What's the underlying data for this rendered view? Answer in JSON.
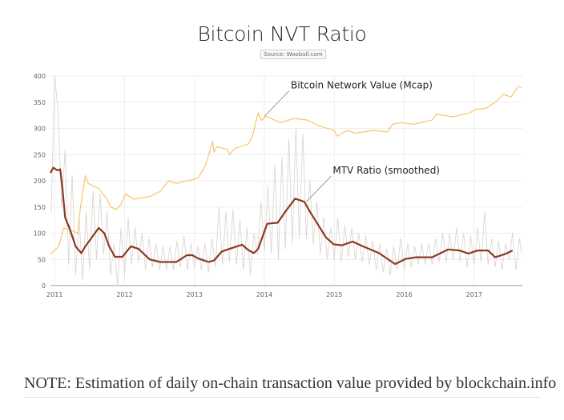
{
  "title": "Bitcoin NVT Ratio",
  "source": "Source: Woobull.com",
  "note": "NOTE: Estimation of daily on-chain transaction value provided by blockchain.info",
  "chart_data": {
    "type": "line",
    "title": "Bitcoin NVT Ratio",
    "xlim": [
      2010.94,
      2017.69
    ],
    "ylim": [
      0,
      400
    ],
    "x_ticks": [
      "2011",
      "2012",
      "2013",
      "2014",
      "2015",
      "2016",
      "2017"
    ],
    "y_ticks": [
      "0",
      "50",
      "100",
      "150",
      "200",
      "250",
      "300",
      "350",
      "400"
    ],
    "grid": true,
    "colors": {
      "mcap": "#f8c062",
      "mtv": "#8b3a22",
      "daily": "#d9d2cf"
    },
    "annotations": [
      {
        "text": "Bitcoin Network Value (Mcap)",
        "target": [
          2014.0,
          323
        ]
      },
      {
        "text": "MTV Ratio (smoothed)",
        "target": [
          2014.6,
          160
        ]
      }
    ],
    "series": [
      {
        "name": "Bitcoin Network Value (Mcap)",
        "key": "mcap",
        "points": [
          [
            2010.94,
            60
          ],
          [
            2011.06,
            75
          ],
          [
            2011.13,
            110
          ],
          [
            2011.25,
            105
          ],
          [
            2011.33,
            100
          ],
          [
            2011.37,
            150
          ],
          [
            2011.4,
            175
          ],
          [
            2011.44,
            210
          ],
          [
            2011.48,
            195
          ],
          [
            2011.63,
            185
          ],
          [
            2011.75,
            165
          ],
          [
            2011.8,
            150
          ],
          [
            2011.88,
            145
          ],
          [
            2011.95,
            155
          ],
          [
            2012.01,
            175
          ],
          [
            2012.13,
            165
          ],
          [
            2012.36,
            170
          ],
          [
            2012.51,
            180
          ],
          [
            2012.63,
            200
          ],
          [
            2012.74,
            195
          ],
          [
            2012.89,
            200
          ],
          [
            2013.05,
            205
          ],
          [
            2013.16,
            230
          ],
          [
            2013.26,
            275
          ],
          [
            2013.28,
            255
          ],
          [
            2013.32,
            265
          ],
          [
            2013.47,
            260
          ],
          [
            2013.5,
            250
          ],
          [
            2013.58,
            262
          ],
          [
            2013.77,
            270
          ],
          [
            2013.83,
            285
          ],
          [
            2013.91,
            330
          ],
          [
            2013.96,
            315
          ],
          [
            2014.02,
            323
          ],
          [
            2014.23,
            311
          ],
          [
            2014.42,
            319
          ],
          [
            2014.61,
            316
          ],
          [
            2014.8,
            304
          ],
          [
            2015.0,
            296
          ],
          [
            2015.04,
            285
          ],
          [
            2015.18,
            296
          ],
          [
            2015.3,
            291
          ],
          [
            2015.56,
            296
          ],
          [
            2015.76,
            293
          ],
          [
            2015.83,
            308
          ],
          [
            2015.95,
            311
          ],
          [
            2016.14,
            308
          ],
          [
            2016.4,
            316
          ],
          [
            2016.46,
            327
          ],
          [
            2016.7,
            322
          ],
          [
            2016.94,
            330
          ],
          [
            2017.02,
            336
          ],
          [
            2017.18,
            339
          ],
          [
            2017.32,
            352
          ],
          [
            2017.42,
            365
          ],
          [
            2017.53,
            360
          ],
          [
            2017.63,
            380
          ],
          [
            2017.68,
            378
          ]
        ]
      },
      {
        "name": "MTV Ratio (smoothed)",
        "key": "mtv",
        "points": [
          [
            2010.94,
            215
          ],
          [
            2010.98,
            225
          ],
          [
            2011.04,
            220
          ],
          [
            2011.08,
            222
          ],
          [
            2011.11,
            188
          ],
          [
            2011.15,
            130
          ],
          [
            2011.21,
            110
          ],
          [
            2011.3,
            75
          ],
          [
            2011.38,
            62
          ],
          [
            2011.44,
            75
          ],
          [
            2011.52,
            90
          ],
          [
            2011.63,
            110
          ],
          [
            2011.71,
            100
          ],
          [
            2011.78,
            75
          ],
          [
            2011.86,
            55
          ],
          [
            2011.97,
            55
          ],
          [
            2012.09,
            75
          ],
          [
            2012.2,
            70
          ],
          [
            2012.36,
            50
          ],
          [
            2012.51,
            45
          ],
          [
            2012.74,
            45
          ],
          [
            2012.89,
            58
          ],
          [
            2012.97,
            58
          ],
          [
            2013.05,
            52
          ],
          [
            2013.2,
            45
          ],
          [
            2013.28,
            48
          ],
          [
            2013.39,
            65
          ],
          [
            2013.5,
            70
          ],
          [
            2013.68,
            78
          ],
          [
            2013.77,
            68
          ],
          [
            2013.85,
            62
          ],
          [
            2013.91,
            70
          ],
          [
            2014.04,
            118
          ],
          [
            2014.19,
            120
          ],
          [
            2014.31,
            143
          ],
          [
            2014.44,
            166
          ],
          [
            2014.57,
            160
          ],
          [
            2014.67,
            137
          ],
          [
            2014.76,
            118
          ],
          [
            2014.88,
            92
          ],
          [
            2014.99,
            79
          ],
          [
            2015.11,
            77
          ],
          [
            2015.26,
            84
          ],
          [
            2015.41,
            75
          ],
          [
            2015.64,
            62
          ],
          [
            2015.87,
            41
          ],
          [
            2016.02,
            51
          ],
          [
            2016.17,
            54
          ],
          [
            2016.4,
            54
          ],
          [
            2016.63,
            69
          ],
          [
            2016.79,
            67
          ],
          [
            2016.92,
            61
          ],
          [
            2017.05,
            67
          ],
          [
            2017.2,
            67
          ],
          [
            2017.3,
            54
          ],
          [
            2017.44,
            60
          ],
          [
            2017.55,
            67
          ]
        ]
      },
      {
        "key": "daily",
        "points": [
          [
            2010.95,
            140
          ],
          [
            2011.0,
            400
          ],
          [
            2011.05,
            330
          ],
          [
            2011.1,
            150
          ],
          [
            2011.15,
            260
          ],
          [
            2011.2,
            40
          ],
          [
            2011.25,
            210
          ],
          [
            2011.3,
            20
          ],
          [
            2011.35,
            130
          ],
          [
            2011.4,
            10
          ],
          [
            2011.45,
            140
          ],
          [
            2011.5,
            30
          ],
          [
            2011.55,
            180
          ],
          [
            2011.6,
            50
          ],
          [
            2011.65,
            175
          ],
          [
            2011.7,
            60
          ],
          [
            2011.75,
            140
          ],
          [
            2011.8,
            20
          ],
          [
            2011.85,
            80
          ],
          [
            2011.9,
            0
          ],
          [
            2011.95,
            110
          ],
          [
            2012.0,
            20
          ],
          [
            2012.05,
            130
          ],
          [
            2012.1,
            40
          ],
          [
            2012.15,
            110
          ],
          [
            2012.2,
            45
          ],
          [
            2012.25,
            100
          ],
          [
            2012.3,
            30
          ],
          [
            2012.35,
            90
          ],
          [
            2012.4,
            35
          ],
          [
            2012.45,
            80
          ],
          [
            2012.5,
            30
          ],
          [
            2012.55,
            75
          ],
          [
            2012.6,
            30
          ],
          [
            2012.65,
            75
          ],
          [
            2012.7,
            30
          ],
          [
            2012.75,
            85
          ],
          [
            2012.8,
            35
          ],
          [
            2012.85,
            95
          ],
          [
            2012.9,
            30
          ],
          [
            2012.95,
            80
          ],
          [
            2013.0,
            35
          ],
          [
            2013.05,
            75
          ],
          [
            2013.1,
            30
          ],
          [
            2013.15,
            80
          ],
          [
            2013.2,
            25
          ],
          [
            2013.25,
            90
          ],
          [
            2013.3,
            35
          ],
          [
            2013.35,
            150
          ],
          [
            2013.4,
            40
          ],
          [
            2013.45,
            140
          ],
          [
            2013.5,
            45
          ],
          [
            2013.55,
            145
          ],
          [
            2013.6,
            40
          ],
          [
            2013.65,
            125
          ],
          [
            2013.7,
            30
          ],
          [
            2013.75,
            110
          ],
          [
            2013.8,
            20
          ],
          [
            2013.85,
            100
          ],
          [
            2013.9,
            60
          ],
          [
            2013.95,
            160
          ],
          [
            2014.0,
            65
          ],
          [
            2014.05,
            190
          ],
          [
            2014.1,
            60
          ],
          [
            2014.15,
            230
          ],
          [
            2014.2,
            50
          ],
          [
            2014.25,
            245
          ],
          [
            2014.3,
            70
          ],
          [
            2014.35,
            280
          ],
          [
            2014.4,
            80
          ],
          [
            2014.45,
            300
          ],
          [
            2014.5,
            90
          ],
          [
            2014.55,
            290
          ],
          [
            2014.6,
            90
          ],
          [
            2014.65,
            200
          ],
          [
            2014.7,
            80
          ],
          [
            2014.75,
            160
          ],
          [
            2014.8,
            60
          ],
          [
            2014.85,
            130
          ],
          [
            2014.9,
            50
          ],
          [
            2014.95,
            110
          ],
          [
            2015.0,
            50
          ],
          [
            2015.05,
            130
          ],
          [
            2015.1,
            45
          ],
          [
            2015.15,
            115
          ],
          [
            2015.2,
            55
          ],
          [
            2015.25,
            110
          ],
          [
            2015.3,
            50
          ],
          [
            2015.35,
            100
          ],
          [
            2015.4,
            45
          ],
          [
            2015.45,
            95
          ],
          [
            2015.5,
            40
          ],
          [
            2015.55,
            85
          ],
          [
            2015.6,
            30
          ],
          [
            2015.65,
            80
          ],
          [
            2015.7,
            25
          ],
          [
            2015.75,
            70
          ],
          [
            2015.8,
            20
          ],
          [
            2015.85,
            75
          ],
          [
            2015.9,
            30
          ],
          [
            2015.95,
            90
          ],
          [
            2016.0,
            30
          ],
          [
            2016.05,
            80
          ],
          [
            2016.1,
            35
          ],
          [
            2016.15,
            75
          ],
          [
            2016.2,
            40
          ],
          [
            2016.25,
            80
          ],
          [
            2016.3,
            40
          ],
          [
            2016.35,
            80
          ],
          [
            2016.4,
            40
          ],
          [
            2016.45,
            90
          ],
          [
            2016.5,
            45
          ],
          [
            2016.55,
            100
          ],
          [
            2016.6,
            45
          ],
          [
            2016.65,
            100
          ],
          [
            2016.7,
            50
          ],
          [
            2016.75,
            110
          ],
          [
            2016.8,
            45
          ],
          [
            2016.85,
            100
          ],
          [
            2016.9,
            35
          ],
          [
            2016.95,
            95
          ],
          [
            2017.0,
            40
          ],
          [
            2017.05,
            110
          ],
          [
            2017.1,
            45
          ],
          [
            2017.15,
            140
          ],
          [
            2017.2,
            40
          ],
          [
            2017.25,
            90
          ],
          [
            2017.3,
            35
          ],
          [
            2017.35,
            85
          ],
          [
            2017.4,
            30
          ],
          [
            2017.45,
            80
          ],
          [
            2017.5,
            50
          ],
          [
            2017.55,
            100
          ],
          [
            2017.6,
            30
          ],
          [
            2017.65,
            90
          ],
          [
            2017.68,
            60
          ]
        ]
      }
    ]
  }
}
